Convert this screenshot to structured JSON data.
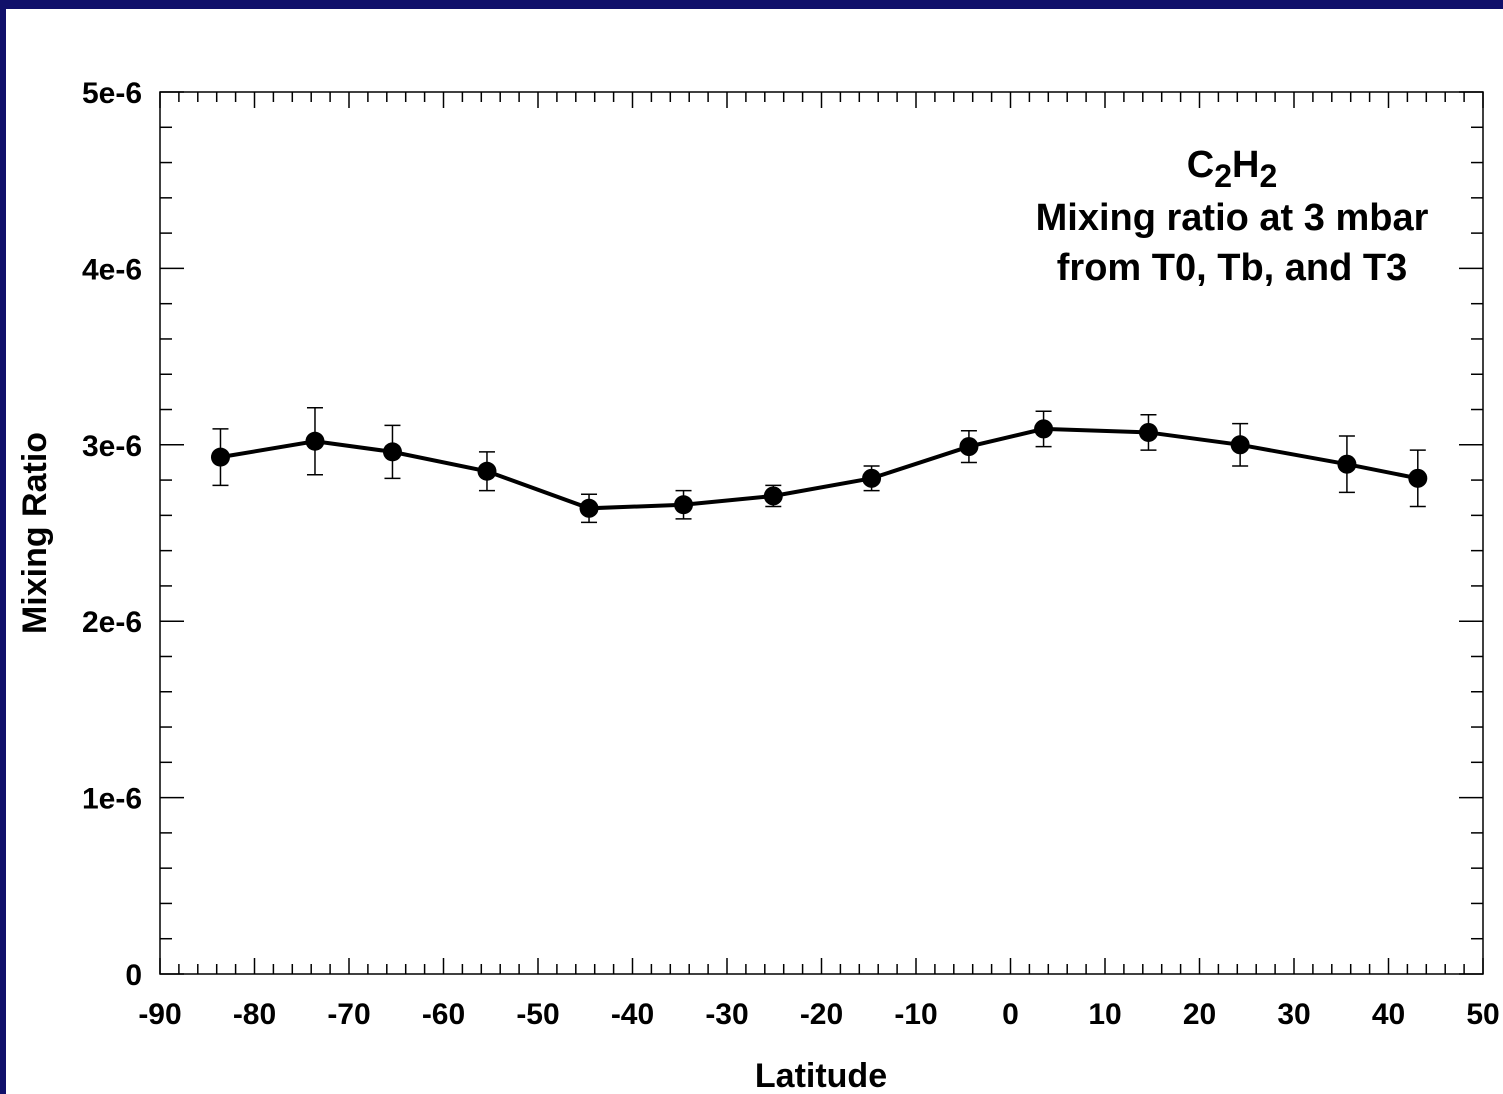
{
  "chart_data": {
    "type": "line",
    "annotation": {
      "species_base": [
        "C",
        "2",
        "H",
        "2"
      ],
      "lines": [
        "Mixing ratio at 3 mbar",
        "from T0, Tb, and T3"
      ]
    },
    "xlabel": "Latitude",
    "ylabel": "Mixing Ratio",
    "xlim": [
      -90,
      50
    ],
    "ylim": [
      0,
      5e-06
    ],
    "x_ticks": [
      -90,
      -80,
      -70,
      -60,
      -50,
      -40,
      -30,
      -20,
      -10,
      0,
      10,
      20,
      30,
      40,
      50
    ],
    "x_tick_labels": [
      "-90",
      "-80",
      "-70",
      "-60",
      "-50",
      "-40",
      "-30",
      "-20",
      "-10",
      "0",
      "10",
      "20",
      "30",
      "40",
      "50"
    ],
    "y_ticks": [
      0,
      1e-06,
      2e-06,
      3e-06,
      4e-06,
      5e-06
    ],
    "y_tick_labels": [
      "0",
      "1e-6",
      "2e-6",
      "3e-6",
      "4e-6",
      "5e-6"
    ],
    "series": [
      {
        "x": [
          -83.6,
          -73.6,
          -65.4,
          -55.4,
          -44.6,
          -34.6,
          -25.1,
          -14.7,
          -4.4,
          3.5,
          14.6,
          24.3,
          35.6,
          43.1
        ],
        "y": [
          2.93e-06,
          3.02e-06,
          2.96e-06,
          2.85e-06,
          2.64e-06,
          2.66e-06,
          2.71e-06,
          2.81e-06,
          2.99e-06,
          3.09e-06,
          3.07e-06,
          3e-06,
          2.89e-06,
          2.81e-06
        ],
        "y_err": [
          1.6e-07,
          1.9e-07,
          1.5e-07,
          1.1e-07,
          8e-08,
          8e-08,
          6e-08,
          7e-08,
          9e-08,
          1e-07,
          1e-07,
          1.2e-07,
          1.6e-07,
          1.6e-07
        ]
      }
    ],
    "colors": {
      "frame_border": "#10106a",
      "line": "#000000",
      "background": "#ffffff"
    }
  }
}
